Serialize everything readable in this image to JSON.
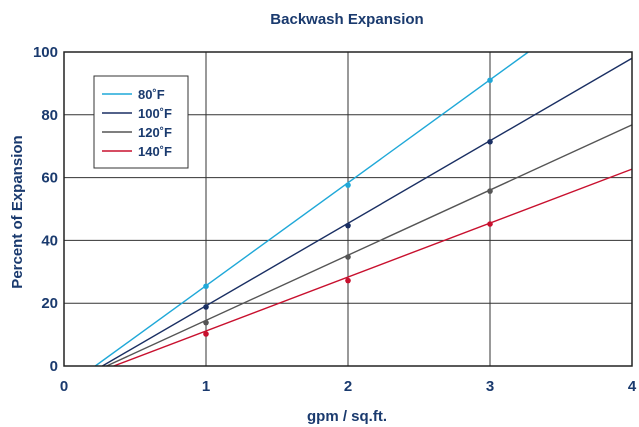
{
  "chart_data": {
    "type": "line",
    "title": "Backwash Expansion",
    "xlabel": "gpm / sq.ft.",
    "ylabel": "Percent of Expansion",
    "xlim": [
      0,
      4
    ],
    "ylim": [
      0,
      100
    ],
    "xticks": [
      "0",
      "1",
      "2",
      "3",
      "4"
    ],
    "yticks": [
      "0",
      "20",
      "40",
      "60",
      "80",
      "100"
    ],
    "grid": true,
    "legend_position": "top-left",
    "series": [
      {
        "name": "80˚F",
        "color": "#1fa8d8",
        "line": [
          [
            0.22,
            0
          ],
          [
            3.27,
            100
          ]
        ],
        "points": [
          [
            1,
            25.4
          ],
          [
            2,
            57.6
          ],
          [
            3,
            91.0
          ]
        ]
      },
      {
        "name": "100˚F",
        "color": "#1a2f63",
        "line": [
          [
            0.27,
            0
          ],
          [
            4.0,
            98.0
          ]
        ],
        "points": [
          [
            1,
            18.8
          ],
          [
            2,
            44.7
          ],
          [
            3,
            71.4
          ]
        ]
      },
      {
        "name": "120˚F",
        "color": "#555555",
        "line": [
          [
            0.3,
            0
          ],
          [
            4.0,
            76.8
          ]
        ],
        "points": [
          [
            1,
            13.8
          ],
          [
            2,
            34.7
          ],
          [
            3,
            55.7
          ]
        ]
      },
      {
        "name": "140˚F",
        "color": "#c8102e",
        "line": [
          [
            0.35,
            0
          ],
          [
            4.0,
            62.7
          ]
        ],
        "points": [
          [
            1,
            10.2
          ],
          [
            2,
            27.2
          ],
          [
            3,
            45.2
          ]
        ]
      }
    ]
  }
}
